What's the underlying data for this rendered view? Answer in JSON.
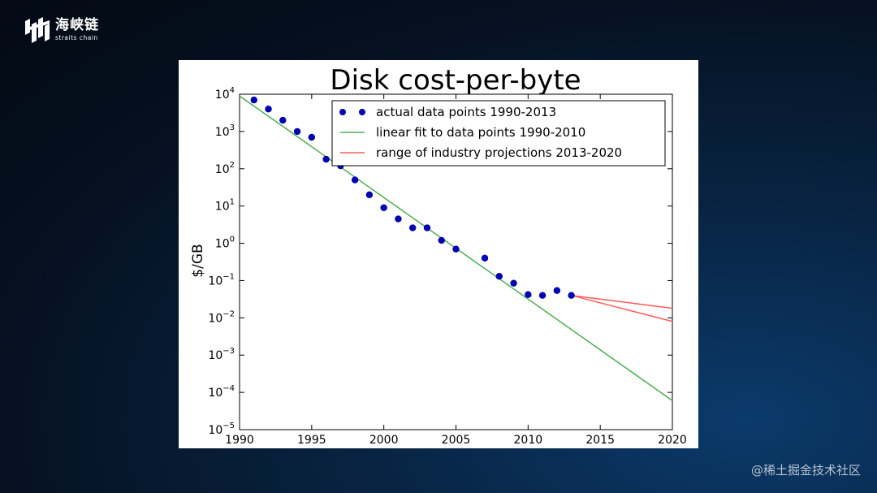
{
  "brand": {
    "name": "海峡链",
    "subtitle": "straits chain"
  },
  "watermark": "@稀土掘金技术社区",
  "chart_data": {
    "type": "scatter",
    "title": "Disk cost-per-byte",
    "xlabel": "",
    "ylabel": "$/GB",
    "xlim": [
      1990,
      2020
    ],
    "ylim_log10": [
      -5,
      4
    ],
    "yscale": "log",
    "legend_position": "top-right",
    "xticks": [
      1990,
      1995,
      2000,
      2005,
      2010,
      2015,
      2020
    ],
    "yticks_exp": [
      4,
      3,
      2,
      1,
      0,
      -1,
      -2,
      -3,
      -4,
      -5
    ],
    "series": [
      {
        "name": "actual data points 1990-2013",
        "kind": "points",
        "color": "#0000b3",
        "x": [
          1991,
          1992,
          1993,
          1994,
          1995,
          1996,
          1997,
          1998,
          1999,
          2000,
          2001,
          2002,
          2003,
          2004,
          2005,
          2007,
          2008,
          2009,
          2010,
          2011,
          2012,
          2013
        ],
        "y": [
          7000,
          4000,
          2000,
          1000,
          700,
          180,
          120,
          50,
          20,
          9,
          4.5,
          2.6,
          2.6,
          1.2,
          0.7,
          0.4,
          0.13,
          0.085,
          0.042,
          0.04,
          0.054,
          0.04
        ]
      },
      {
        "name": "linear fit to data points 1990-2010",
        "kind": "line",
        "color": "#4caf50",
        "x": [
          1990,
          2020
        ],
        "y": [
          9000,
          6e-05
        ]
      },
      {
        "name": "range of industry projections 2013-2020",
        "kind": "lines",
        "color": "#ff5a5a",
        "lines": [
          {
            "x": [
              2013,
              2020
            ],
            "y": [
              0.04,
              0.018
            ]
          },
          {
            "x": [
              2013,
              2020
            ],
            "y": [
              0.04,
              0.008
            ]
          }
        ]
      }
    ]
  }
}
